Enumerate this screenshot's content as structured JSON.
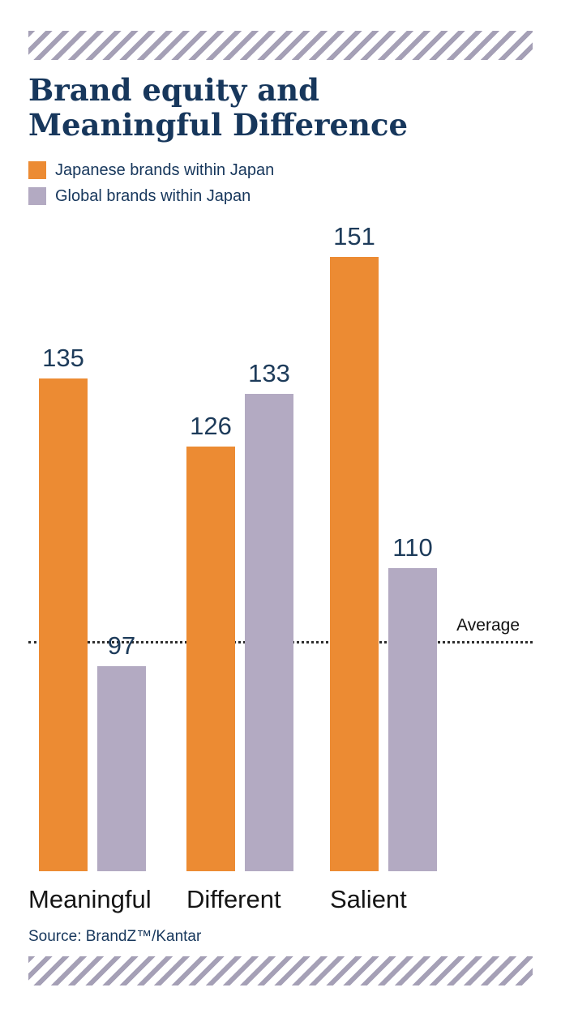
{
  "header": {
    "title_line1": "Brand equity and",
    "title_line2": "Meaningful Difference"
  },
  "chart_data": {
    "type": "bar",
    "title": "Brand equity and Meaningful Difference",
    "categories": [
      "Meaningful",
      "Different",
      "Salient"
    ],
    "series": [
      {
        "name": "Japanese brands within Japan",
        "color": "#ec8b33",
        "values": [
          135,
          126,
          151
        ]
      },
      {
        "name": "Global brands within Japan",
        "color": "#b3aac2",
        "values": [
          97,
          133,
          110
        ]
      }
    ],
    "average_line": {
      "label": "Average",
      "value": 100
    },
    "ylim": [
      70,
      155
    ],
    "legend_position": "top-left",
    "grid": "off",
    "source": "Source: BrandZ™/Kantar"
  },
  "decorations": {
    "hatch_color": "#a5a0b6",
    "accent_navy": "#17375c"
  }
}
